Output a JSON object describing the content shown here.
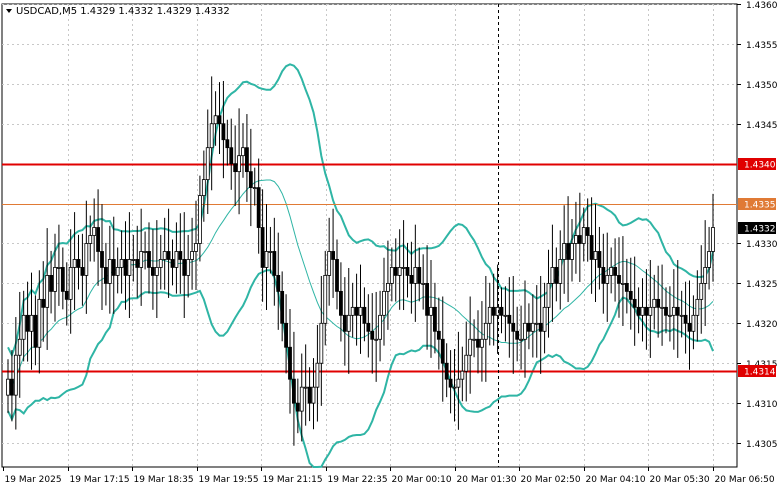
{
  "window": {
    "symbol_header": "USDCAD,M5  1.4329 1.4332 1.4329 1.4332",
    "menu_arrow_icon": "triangle-down-icon"
  },
  "colors": {
    "background": "#ffffff",
    "grid": "#c8c8c8",
    "candle": "#000000",
    "bollinger": "#2fb5a5",
    "support_resistance": "#e00000",
    "level_mid": "#e07a35",
    "price_tag_bg": "#000000"
  },
  "chart_data": {
    "type": "candlestick",
    "symbol": "USDCAD",
    "timeframe": "M5",
    "ohlc_header": {
      "open": 1.4329,
      "high": 1.4332,
      "low": 1.4329,
      "close": 1.4332
    },
    "ylim": [
      1.4302,
      1.436
    ],
    "y_ticks": [
      "1.4360",
      "1.4355",
      "1.4350",
      "1.4345",
      "1.4330",
      "1.4325",
      "1.4320",
      "1.4315",
      "1.4310",
      "1.4305"
    ],
    "x_ticks": [
      "19 Mar 2025",
      "19 Mar 17:15",
      "19 Mar 18:35",
      "19 Mar 19:55",
      "19 Mar 21:15",
      "19 Mar 22:35",
      "20 Mar 00:10",
      "20 Mar 01:30",
      "20 Mar 02:50",
      "20 Mar 04:10",
      "20 Mar 05:30",
      "20 Mar 06:50"
    ],
    "horizontal_levels": [
      {
        "label": "1.4340",
        "value": 1.434,
        "color": "#e00000"
      },
      {
        "label": "1.4335",
        "value": 1.4335,
        "color": "#e07a35"
      },
      {
        "label": "1.4314",
        "value": 1.4314,
        "color": "#e00000"
      }
    ],
    "current_price": {
      "label": "1.4332",
      "value": 1.4332
    },
    "session_separator_index": 125,
    "candle_closes": [
      1.4313,
      1.4311,
      1.4316,
      1.4318,
      1.4321,
      1.4319,
      1.4321,
      1.4317,
      1.4323,
      1.4322,
      1.4326,
      1.4324,
      1.4327,
      1.4327,
      1.4324,
      1.4323,
      1.4327,
      1.4328,
      1.4327,
      1.4326,
      1.433,
      1.4331,
      1.4332,
      1.4329,
      1.4327,
      1.4325,
      1.4328,
      1.4326,
      1.4327,
      1.4328,
      1.4326,
      1.4328,
      1.4328,
      1.4327,
      1.4329,
      1.4329,
      1.4327,
      1.4326,
      1.4327,
      1.4328,
      1.4329,
      1.4328,
      1.4327,
      1.4329,
      1.4328,
      1.4326,
      1.4328,
      1.4329,
      1.433,
      1.4336,
      1.4338,
      1.4342,
      1.4345,
      1.4346,
      1.4345,
      1.4343,
      1.4342,
      1.434,
      1.4339,
      1.4341,
      1.4342,
      1.4339,
      1.4337,
      1.4337,
      1.4332,
      1.4327,
      1.4329,
      1.4329,
      1.4326,
      1.4324,
      1.432,
      1.4317,
      1.4313,
      1.431,
      1.4309,
      1.4312,
      1.4312,
      1.431,
      1.4312,
      1.4315,
      1.432,
      1.4326,
      1.4329,
      1.4328,
      1.4324,
      1.4321,
      1.4319,
      1.4321,
      1.4322,
      1.4321,
      1.4322,
      1.432,
      1.4319,
      1.4318,
      1.4318,
      1.4321,
      1.4324,
      1.4325,
      1.4327,
      1.4326,
      1.4327,
      1.4327,
      1.4326,
      1.4325,
      1.4327,
      1.4325,
      1.4325,
      1.4321,
      1.4322,
      1.4319,
      1.4318,
      1.4315,
      1.4313,
      1.4312,
      1.4312,
      1.4313,
      1.4314,
      1.4316,
      1.4318,
      1.4318,
      1.4317,
      1.4318,
      1.432,
      1.4322,
      1.4321,
      1.4322,
      1.4321,
      1.4321,
      1.432,
      1.4319,
      1.4318,
      1.4318,
      1.432,
      1.4319,
      1.432,
      1.432,
      1.4319,
      1.4322,
      1.4325,
      1.4327,
      1.4325,
      1.4328,
      1.433,
      1.4328,
      1.433,
      1.4331,
      1.433,
      1.4332,
      1.4331,
      1.4328,
      1.4329,
      1.4327,
      1.4325,
      1.4326,
      1.4327,
      1.4326,
      1.4325,
      1.4325,
      1.4324,
      1.4323,
      1.4322,
      1.4321,
      1.4322,
      1.4321,
      1.4322,
      1.4323,
      1.4322,
      1.4322,
      1.4321,
      1.4321,
      1.4322,
      1.4321,
      1.4321,
      1.432,
      1.4319,
      1.4321,
      1.4323,
      1.4325,
      1.4327,
      1.4329,
      1.4332
    ]
  }
}
